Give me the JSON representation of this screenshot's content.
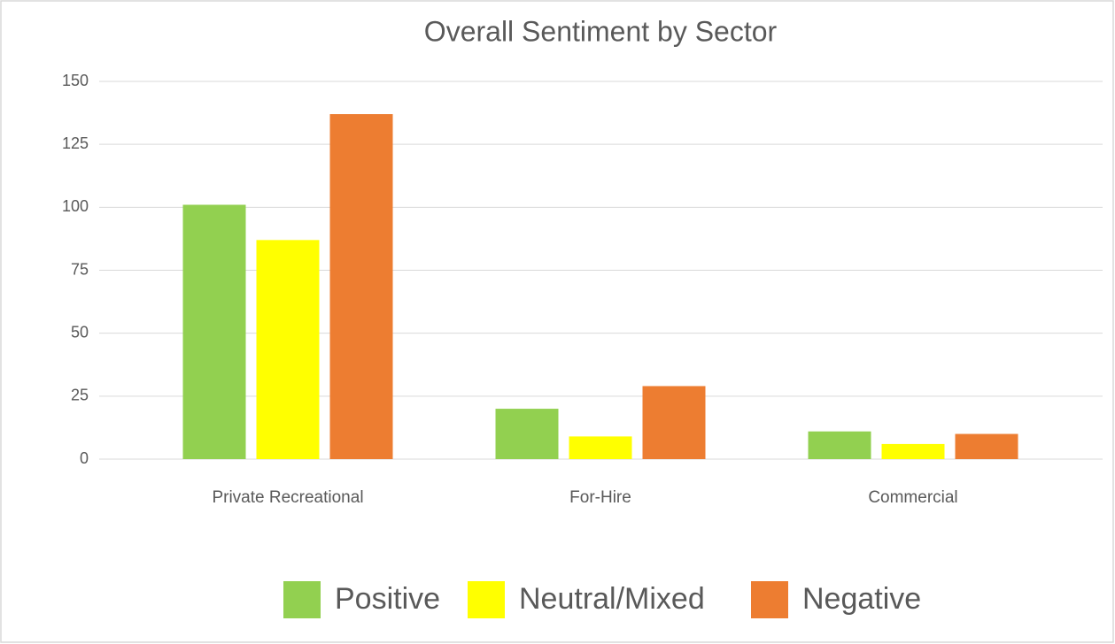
{
  "chart_data": {
    "type": "bar",
    "title": "Overall Sentiment by Sector",
    "categories": [
      "Private Recreational",
      "For-Hire",
      "Commercial"
    ],
    "series": [
      {
        "name": "Positive",
        "color": "#92d050",
        "values": [
          101,
          20,
          11
        ]
      },
      {
        "name": "Neutral/Mixed",
        "color": "#ffff00",
        "values": [
          87,
          9,
          6
        ]
      },
      {
        "name": "Negative",
        "color": "#ed7d31",
        "values": [
          137,
          29,
          10
        ]
      }
    ],
    "ylim": [
      0,
      150
    ],
    "yticks": [
      0,
      25,
      50,
      75,
      100,
      125,
      150
    ],
    "grid": true,
    "legend": "bottom"
  }
}
